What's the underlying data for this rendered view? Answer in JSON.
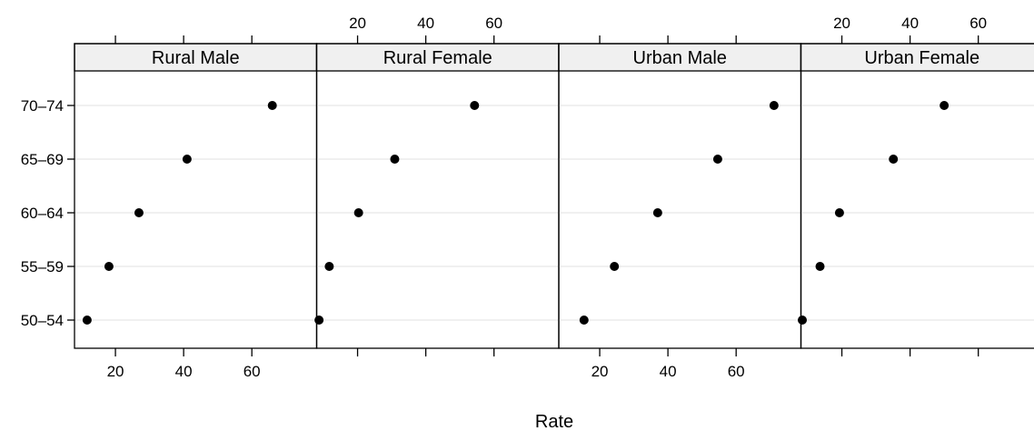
{
  "chart_data": {
    "type": "scatter",
    "chart_style": "dot plot (trellis, 4 panels)",
    "xlabel": "Rate",
    "xlim": [
      8,
      79
    ],
    "xticks": [
      20,
      40,
      60
    ],
    "x_tick_labels": [
      "20",
      "40",
      "60"
    ],
    "categories": [
      "50–54",
      "55–59",
      "60–64",
      "65–69",
      "70–74"
    ],
    "point_color": "#000000",
    "strip_color": "#f0f0f0",
    "gridline_color": "#e6e6e6",
    "panels": [
      {
        "name": "Rural Male",
        "values": [
          11.7,
          18.1,
          26.9,
          41.0,
          66.0
        ]
      },
      {
        "name": "Rural Female",
        "values": [
          8.7,
          11.7,
          20.3,
          30.9,
          54.3
        ]
      },
      {
        "name": "Urban Male",
        "values": [
          15.4,
          24.3,
          37.0,
          54.6,
          71.1
        ]
      },
      {
        "name": "Urban Female",
        "values": [
          8.4,
          13.6,
          19.3,
          35.1,
          50.0
        ]
      }
    ]
  }
}
